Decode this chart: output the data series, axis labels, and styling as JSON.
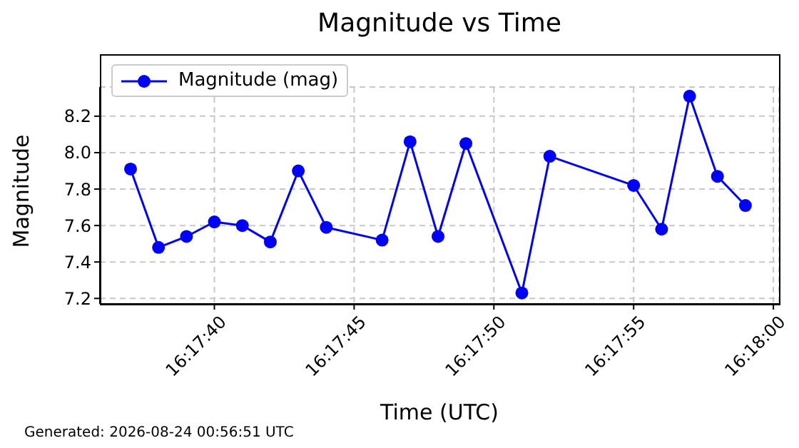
{
  "chart_data": {
    "type": "line",
    "title": "Magnitude vs Time",
    "xlabel": "Time (UTC)",
    "ylabel": "Magnitude",
    "annotations": [
      "Generated: 2026-08-24 00:56:51 UTC"
    ],
    "x": [
      16.293611,
      16.293889,
      16.294167,
      16.294444,
      16.294722,
      16.295,
      16.295278,
      16.295556,
      16.296111,
      16.296389,
      16.296667,
      16.296944,
      16.2975,
      16.297778,
      16.298611,
      16.298889,
      16.299167,
      16.299444,
      16.299722
    ],
    "series": [
      {
        "name": "Magnitude (mag)",
        "color": "#0000ff",
        "values": [
          7.91,
          7.48,
          7.54,
          7.62,
          7.6,
          7.51,
          7.9,
          7.59,
          7.52,
          8.06,
          7.54,
          8.05,
          7.23,
          7.98,
          7.82,
          7.58,
          8.31,
          7.87,
          7.71
        ]
      }
    ],
    "xlim": [
      16.293306,
      16.300056
    ],
    "xticks": [
      {
        "value": 16.294444,
        "label": "16:17:40"
      },
      {
        "value": 16.295833,
        "label": "16:17:45"
      },
      {
        "value": 16.297222,
        "label": "16:17:50"
      },
      {
        "value": 16.298611,
        "label": "16:17:55"
      },
      {
        "value": 16.3,
        "label": "16:18:00"
      }
    ],
    "ylim": [
      7.17,
      8.36
    ],
    "yticks": [
      7.2,
      7.4,
      7.6,
      7.8,
      {
        "value": 8,
        "label": "8.0"
      },
      8.2
    ],
    "grid": true,
    "legend": "top left",
    "marker": "circle",
    "line_style": "solid"
  }
}
